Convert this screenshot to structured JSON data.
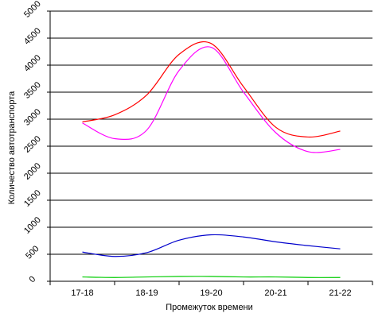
{
  "chart_data": {
    "type": "line",
    "title": "",
    "xlabel": "Промежуток времени",
    "ylabel": "Количество автотранспорта",
    "ylim": [
      0,
      5000
    ],
    "y_ticks": [
      0,
      500,
      1000,
      1500,
      2000,
      2500,
      3000,
      3500,
      4000,
      4500,
      5000
    ],
    "y_tick_labels": [
      "0",
      "500",
      "1000",
      "1500",
      "2000",
      "2500",
      "3000",
      "3500",
      "4000",
      "4500",
      "5000"
    ],
    "categories": [
      "17-18",
      "18-19",
      "19-20",
      "20-21",
      "21-22"
    ],
    "grid": "horizontal",
    "legend": "none",
    "smooth": true,
    "series": [
      {
        "color": "#ff0000",
        "x": [
          0,
          0.5,
          1.0,
          1.5,
          2.0,
          2.5,
          3.0,
          3.5,
          4.0
        ],
        "y": [
          2950,
          3080,
          3450,
          4200,
          4400,
          3600,
          2850,
          2670,
          2780
        ]
      },
      {
        "color": "#ff00ff",
        "x": [
          0,
          0.5,
          1.0,
          1.5,
          2.0,
          2.5,
          3.0,
          3.5,
          4.0
        ],
        "y": [
          2930,
          2640,
          2800,
          3900,
          4330,
          3500,
          2750,
          2400,
          2440
        ]
      },
      {
        "color": "#0000cc",
        "x": [
          0,
          0.5,
          1.0,
          1.5,
          2.0,
          2.5,
          3.0,
          3.5,
          4.0
        ],
        "y": [
          540,
          460,
          530,
          760,
          860,
          820,
          730,
          660,
          600
        ]
      },
      {
        "color": "#00cc00",
        "x": [
          0,
          0.5,
          1.0,
          1.5,
          2.0,
          2.5,
          3.0,
          3.5,
          4.0
        ],
        "y": [
          80,
          70,
          80,
          90,
          90,
          80,
          80,
          70,
          70
        ]
      }
    ]
  }
}
